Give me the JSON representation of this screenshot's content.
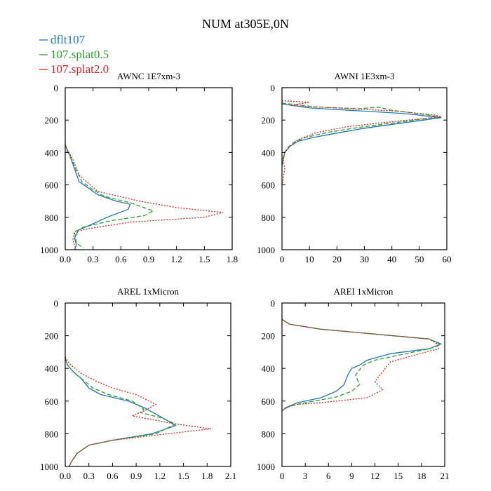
{
  "figure": {
    "title": "NUM at305E,0N",
    "legend": [
      {
        "name": "dflt107",
        "color": "#1f77b4",
        "dash": "solid"
      },
      {
        "name": "107.splat0.5",
        "color": "#2ca02c",
        "dash": "dashed"
      },
      {
        "name": "107.splat2.0",
        "color": "#d62728",
        "dash": "dotted"
      }
    ]
  },
  "chart_data": [
    {
      "type": "line",
      "title": "AWNC  1E7xm-3",
      "xlim": [
        0,
        1.8
      ],
      "ylim": [
        1000,
        0
      ],
      "xticks": [
        0,
        0.3,
        0.6,
        0.9,
        1.2,
        1.5,
        1.8
      ],
      "xtick_labels": [
        "0.0",
        "0.3",
        "0.6",
        "0.9",
        "1.2",
        "1.5",
        "1.8"
      ],
      "yticks": [
        0,
        200,
        400,
        600,
        800,
        1000
      ],
      "ytick_labels": [
        "0",
        "200",
        "400",
        "600",
        "800",
        "1000"
      ],
      "series": [
        {
          "name": "dflt107",
          "points": [
            [
              0,
              350
            ],
            [
              0.02,
              380
            ],
            [
              0.05,
              420
            ],
            [
              0.1,
              500
            ],
            [
              0.15,
              580
            ],
            [
              0.25,
              620
            ],
            [
              0.35,
              660
            ],
            [
              0.55,
              700
            ],
            [
              0.7,
              720
            ],
            [
              0.68,
              750
            ],
            [
              0.45,
              800
            ],
            [
              0.3,
              840
            ],
            [
              0.14,
              880
            ],
            [
              0.1,
              930
            ],
            [
              0.12,
              970
            ],
            [
              0.1,
              1000
            ]
          ]
        },
        {
          "name": "107.splat0.5",
          "points": [
            [
              0,
              350
            ],
            [
              0.02,
              390
            ],
            [
              0.06,
              430
            ],
            [
              0.12,
              510
            ],
            [
              0.18,
              580
            ],
            [
              0.3,
              630
            ],
            [
              0.42,
              670
            ],
            [
              0.7,
              710
            ],
            [
              0.95,
              760
            ],
            [
              0.85,
              790
            ],
            [
              0.5,
              820
            ],
            [
              0.2,
              860
            ],
            [
              0.1,
              890
            ],
            [
              0.12,
              960
            ],
            [
              0.2,
              990
            ]
          ]
        },
        {
          "name": "107.splat2.0",
          "points": [
            [
              0,
              350
            ],
            [
              0.02,
              380
            ],
            [
              0.08,
              440
            ],
            [
              0.15,
              540
            ],
            [
              0.25,
              590
            ],
            [
              0.35,
              640
            ],
            [
              0.8,
              700
            ],
            [
              1.2,
              740
            ],
            [
              1.7,
              770
            ],
            [
              1.5,
              800
            ],
            [
              0.7,
              830
            ],
            [
              0.25,
              870
            ],
            [
              0.1,
              890
            ],
            [
              0.08,
              940
            ],
            [
              0.12,
              1000
            ]
          ]
        }
      ]
    },
    {
      "type": "line",
      "title": "AWNI  1E3xm-3",
      "xlim": [
        0,
        60
      ],
      "ylim": [
        1000,
        0
      ],
      "xticks": [
        0,
        10,
        20,
        30,
        40,
        50,
        60
      ],
      "xtick_labels": [
        "0",
        "10",
        "20",
        "30",
        "40",
        "50",
        "60"
      ],
      "yticks": [
        0,
        200,
        400,
        600,
        800,
        1000
      ],
      "ytick_labels": [
        "0",
        "200",
        "400",
        "600",
        "800",
        "1000"
      ],
      "series": [
        {
          "name": "dflt107",
          "points": [
            [
              0,
              100
            ],
            [
              10,
              125
            ],
            [
              25,
              140
            ],
            [
              45,
              160
            ],
            [
              58,
              185
            ],
            [
              45,
              215
            ],
            [
              30,
              250
            ],
            [
              20,
              280
            ],
            [
              12,
              305
            ],
            [
              6,
              330
            ],
            [
              3,
              360
            ],
            [
              1,
              400
            ],
            [
              0.5,
              440
            ],
            [
              0,
              480
            ]
          ]
        },
        {
          "name": "107.splat0.5",
          "points": [
            [
              0,
              95
            ],
            [
              12,
              118
            ],
            [
              28,
              130
            ],
            [
              35,
              120
            ],
            [
              40,
              140
            ],
            [
              52,
              165
            ],
            [
              57,
              180
            ],
            [
              44,
              210
            ],
            [
              28,
              245
            ],
            [
              17,
              275
            ],
            [
              9,
              305
            ],
            [
              5,
              330
            ],
            [
              2,
              370
            ],
            [
              1,
              400
            ],
            [
              0.3,
              440
            ],
            [
              0,
              470
            ]
          ]
        },
        {
          "name": "107.splat2.0",
          "points": [
            [
              0,
              80
            ],
            [
              10,
              90
            ],
            [
              3,
              110
            ],
            [
              20,
              125
            ],
            [
              42,
              145
            ],
            [
              56,
              170
            ],
            [
              58,
              180
            ],
            [
              40,
              210
            ],
            [
              24,
              240
            ],
            [
              12,
              280
            ],
            [
              6,
              320
            ],
            [
              3,
              360
            ],
            [
              1,
              400
            ],
            [
              0.5,
              450
            ],
            [
              1,
              500
            ],
            [
              0.3,
              580
            ],
            [
              0,
              600
            ]
          ]
        }
      ]
    },
    {
      "type": "line",
      "title": "AREL  1xMicron",
      "xlim": [
        0,
        2.1
      ],
      "ylim": [
        1000,
        0
      ],
      "xticks": [
        0,
        0.3,
        0.6,
        0.9,
        1.2,
        1.5,
        1.8,
        2.1
      ],
      "xtick_labels": [
        "0.0",
        "0.3",
        "0.6",
        "0.9",
        "1.2",
        "1.5",
        "1.8",
        "2.1"
      ],
      "yticks": [
        0,
        200,
        400,
        600,
        800,
        1000
      ],
      "ytick_labels": [
        "0",
        "200",
        "400",
        "600",
        "800",
        "1000"
      ],
      "series": [
        {
          "name": "dflt107",
          "points": [
            [
              0,
              340
            ],
            [
              0.03,
              380
            ],
            [
              0.1,
              420
            ],
            [
              0.2,
              460
            ],
            [
              0.3,
              520
            ],
            [
              0.45,
              560
            ],
            [
              0.8,
              600
            ],
            [
              1.0,
              640
            ],
            [
              1.15,
              680
            ],
            [
              1.3,
              720
            ],
            [
              1.4,
              750
            ],
            [
              1.1,
              800
            ],
            [
              0.6,
              840
            ],
            [
              0.3,
              870
            ],
            [
              0.15,
              920
            ],
            [
              0.08,
              970
            ],
            [
              0.05,
              1000
            ]
          ]
        },
        {
          "name": "107.splat0.5",
          "points": [
            [
              0,
              340
            ],
            [
              0.03,
              380
            ],
            [
              0.12,
              430
            ],
            [
              0.25,
              480
            ],
            [
              0.35,
              520
            ],
            [
              0.55,
              560
            ],
            [
              0.85,
              600
            ],
            [
              1.0,
              650
            ],
            [
              0.95,
              670
            ],
            [
              1.2,
              700
            ],
            [
              1.4,
              740
            ],
            [
              1.15,
              800
            ],
            [
              0.6,
              840
            ],
            [
              0.3,
              870
            ],
            [
              0.15,
              920
            ],
            [
              0.08,
              970
            ],
            [
              0.05,
              1000
            ]
          ]
        },
        {
          "name": "107.splat2.0",
          "points": [
            [
              0,
              330
            ],
            [
              0.05,
              370
            ],
            [
              0.2,
              430
            ],
            [
              0.4,
              480
            ],
            [
              0.6,
              520
            ],
            [
              0.9,
              560
            ],
            [
              1.15,
              620
            ],
            [
              1.0,
              660
            ],
            [
              0.85,
              690
            ],
            [
              1.4,
              740
            ],
            [
              1.85,
              770
            ],
            [
              1.3,
              800
            ],
            [
              0.6,
              840
            ],
            [
              0.3,
              870
            ],
            [
              0.15,
              920
            ],
            [
              0.08,
              970
            ],
            [
              0.05,
              1000
            ]
          ]
        }
      ]
    },
    {
      "type": "line",
      "title": "AREI  1xMicron",
      "xlim": [
        0,
        21
      ],
      "ylim": [
        1000,
        0
      ],
      "xticks": [
        0,
        3,
        6,
        9,
        12,
        15,
        18,
        21
      ],
      "xtick_labels": [
        "0",
        "3",
        "6",
        "9",
        "12",
        "15",
        "18",
        "21"
      ],
      "yticks": [
        0,
        200,
        400,
        600,
        800,
        1000
      ],
      "ytick_labels": [
        "0",
        "200",
        "400",
        "600",
        "800",
        "1000"
      ],
      "series": [
        {
          "name": "dflt107",
          "points": [
            [
              0,
              100
            ],
            [
              1,
              130
            ],
            [
              5,
              160
            ],
            [
              12,
              190
            ],
            [
              19,
              220
            ],
            [
              20.5,
              250
            ],
            [
              19,
              280
            ],
            [
              14,
              310
            ],
            [
              11,
              350
            ],
            [
              10,
              380
            ],
            [
              9,
              400
            ],
            [
              8.5,
              440
            ],
            [
              8,
              500
            ],
            [
              7,
              540
            ],
            [
              5,
              580
            ],
            [
              2,
              610
            ],
            [
              0.5,
              640
            ],
            [
              0,
              660
            ]
          ]
        },
        {
          "name": "107.splat0.5",
          "points": [
            [
              0,
              100
            ],
            [
              1,
              130
            ],
            [
              5,
              160
            ],
            [
              12,
              190
            ],
            [
              19,
              220
            ],
            [
              20.5,
              255
            ],
            [
              19,
              280
            ],
            [
              15,
              320
            ],
            [
              12,
              350
            ],
            [
              10.5,
              380
            ],
            [
              9.5,
              440
            ],
            [
              10,
              500
            ],
            [
              9,
              540
            ],
            [
              7,
              575
            ],
            [
              3,
              610
            ],
            [
              1,
              630
            ],
            [
              0,
              660
            ]
          ]
        },
        {
          "name": "107.splat2.0",
          "points": [
            [
              0,
              100
            ],
            [
              1,
              130
            ],
            [
              5,
              160
            ],
            [
              12,
              190
            ],
            [
              19,
              220
            ],
            [
              20,
              250
            ],
            [
              20.2,
              280
            ],
            [
              17,
              320
            ],
            [
              14,
              360
            ],
            [
              13,
              420
            ],
            [
              12,
              480
            ],
            [
              13,
              530
            ],
            [
              11,
              580
            ],
            [
              5,
              610
            ],
            [
              2,
              620
            ],
            [
              0.5,
              640
            ],
            [
              0,
              660
            ]
          ]
        }
      ]
    }
  ]
}
